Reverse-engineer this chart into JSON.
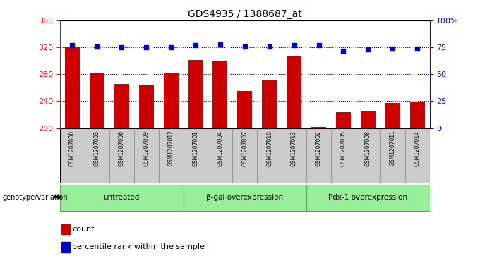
{
  "title": "GDS4935 / 1388687_at",
  "samples": [
    "GSM1207000",
    "GSM1207003",
    "GSM1207006",
    "GSM1207009",
    "GSM1207012",
    "GSM1207001",
    "GSM1207004",
    "GSM1207007",
    "GSM1207010",
    "GSM1207013",
    "GSM1207002",
    "GSM1207005",
    "GSM1207008",
    "GSM1207011",
    "GSM1207014"
  ],
  "bar_values": [
    320,
    281,
    266,
    264,
    281,
    301,
    300,
    255,
    271,
    307,
    202,
    224,
    225,
    237,
    239
  ],
  "percentile_values": [
    77,
    76,
    75,
    75,
    75,
    77,
    78,
    76,
    76,
    77,
    77,
    72,
    73,
    74,
    74
  ],
  "groups": [
    {
      "label": "untreated",
      "start": 0,
      "end": 5
    },
    {
      "label": "β-gal overexpression",
      "start": 5,
      "end": 10
    },
    {
      "label": "Pdx-1 overexpression",
      "start": 10,
      "end": 15
    }
  ],
  "ylim_left": [
    200,
    360
  ],
  "ylim_right": [
    0,
    100
  ],
  "yticks_left": [
    200,
    240,
    280,
    320,
    360
  ],
  "yticks_right": [
    0,
    25,
    50,
    75,
    100
  ],
  "yticklabels_right": [
    "0",
    "25",
    "50",
    "75",
    "100%"
  ],
  "bar_color": "#cc0000",
  "percentile_color": "#0000cc",
  "bar_bottom": 200,
  "grid_values": [
    240,
    280,
    320
  ],
  "sample_bg_color": "#cccccc",
  "group_bg_color": "#99ee99",
  "group_border_color": "#55aa55",
  "legend_label_count": "count",
  "legend_label_percentile": "percentile rank within the sample",
  "genotype_label": "genotype/variation"
}
